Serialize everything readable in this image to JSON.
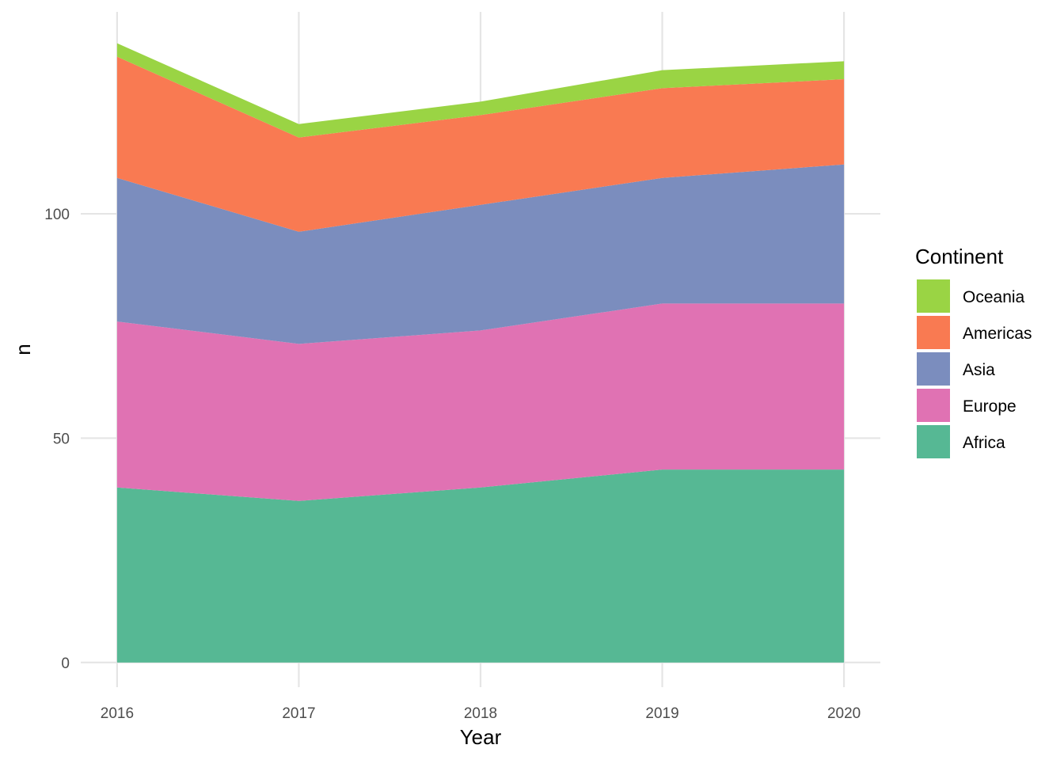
{
  "chart_data": {
    "type": "area",
    "stacked": true,
    "xlabel": "Year",
    "ylabel": "n",
    "x": [
      2016,
      2017,
      2018,
      2019,
      2020
    ],
    "xticks": [
      "2016",
      "2017",
      "2018",
      "2019",
      "2020"
    ],
    "yticks": [
      "0",
      "50",
      "100"
    ],
    "ylim": [
      -5.5,
      145
    ],
    "grid": true,
    "legend": {
      "title": "Continent",
      "position": "right",
      "entries": [
        "Oceania",
        "Americas",
        "Asia",
        "Europe",
        "Africa"
      ]
    },
    "series": [
      {
        "name": "Africa",
        "color": "#56B894",
        "values": [
          39,
          36,
          39,
          43,
          43
        ]
      },
      {
        "name": "Europe",
        "color": "#E072B3",
        "values": [
          37,
          35,
          35,
          37,
          37
        ]
      },
      {
        "name": "Asia",
        "color": "#7B8DBE",
        "values": [
          32,
          25,
          28,
          28,
          31
        ]
      },
      {
        "name": "Americas",
        "color": "#F97A52",
        "values": [
          27,
          21,
          20,
          20,
          19
        ]
      },
      {
        "name": "Oceania",
        "color": "#9AD444",
        "values": [
          3,
          3,
          3,
          4,
          4
        ]
      }
    ]
  }
}
